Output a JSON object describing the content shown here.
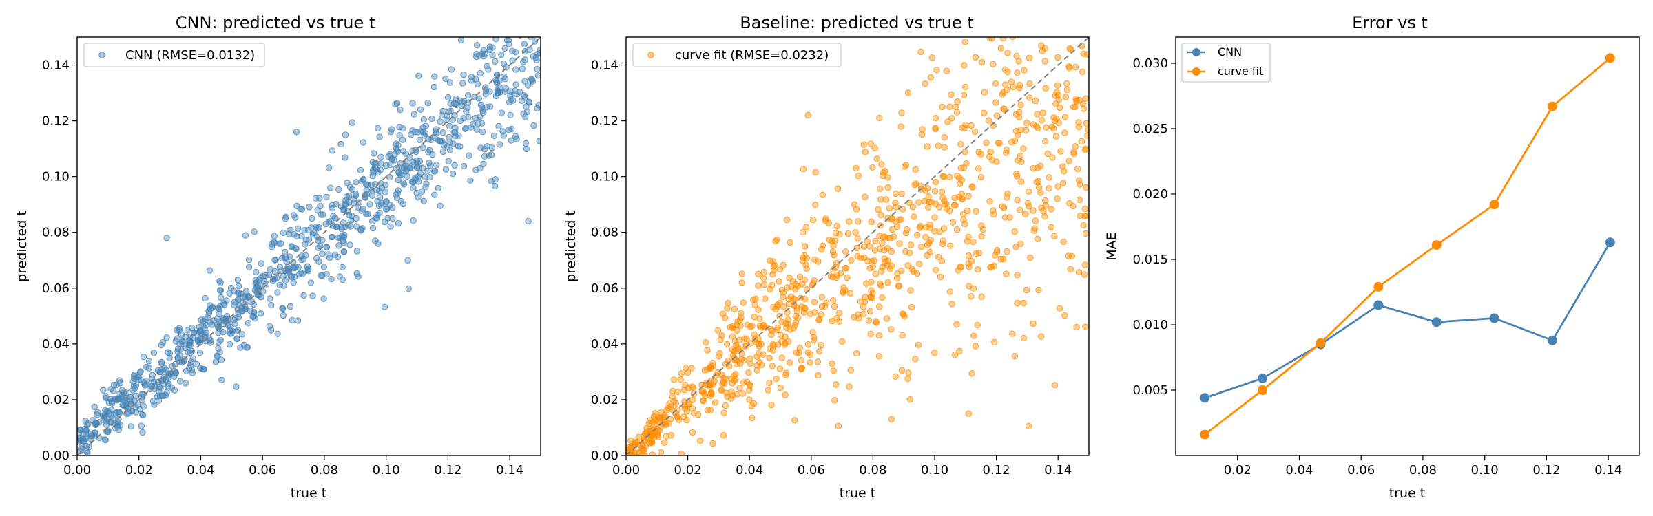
{
  "chart_data": [
    {
      "type": "scatter",
      "title": "CNN: predicted vs true t",
      "xlabel": "true t",
      "ylabel": "predicted t",
      "xlim": [
        0.0,
        0.15
      ],
      "ylim": [
        0.0,
        0.15
      ],
      "xticks": [
        "0.00",
        "0.02",
        "0.04",
        "0.06",
        "0.08",
        "0.10",
        "0.12",
        "0.14"
      ],
      "yticks": [
        "0.00",
        "0.02",
        "0.04",
        "0.06",
        "0.08",
        "0.10",
        "0.12",
        "0.14"
      ],
      "reference_line": "y = x (dashed gray)",
      "grid": false,
      "legend_position": "upper-left",
      "series": [
        {
          "name": "CNN (RMSE=0.0132)",
          "color": "#4682b4",
          "approx_points": 1000,
          "noise_sd": 0.0132,
          "points": [
            [
              0.002,
              0.008
            ],
            [
              0.006,
              0.011
            ],
            [
              0.011,
              0.012
            ],
            [
              0.016,
              0.015
            ],
            [
              0.021,
              0.022
            ],
            [
              0.027,
              0.03
            ],
            [
              0.029,
              0.078
            ],
            [
              0.034,
              0.041
            ],
            [
              0.04,
              0.044
            ],
            [
              0.046,
              0.048
            ],
            [
              0.052,
              0.063
            ],
            [
              0.058,
              0.062
            ],
            [
              0.064,
              0.066
            ],
            [
              0.07,
              0.062
            ],
            [
              0.071,
              0.116
            ],
            [
              0.076,
              0.085
            ],
            [
              0.082,
              0.084
            ],
            [
              0.088,
              0.093
            ],
            [
              0.094,
              0.097
            ],
            [
              0.1,
              0.104
            ],
            [
              0.103,
              0.126
            ],
            [
              0.107,
              0.07
            ],
            [
              0.112,
              0.116
            ],
            [
              0.118,
              0.122
            ],
            [
              0.124,
              0.12
            ],
            [
              0.13,
              0.128
            ],
            [
              0.136,
              0.131
            ],
            [
              0.142,
              0.133
            ],
            [
              0.146,
              0.084
            ],
            [
              0.147,
              0.135
            ]
          ]
        }
      ]
    },
    {
      "type": "scatter",
      "title": "Baseline: predicted vs true t",
      "xlabel": "true t",
      "ylabel": "predicted t",
      "xlim": [
        0.0,
        0.15
      ],
      "ylim": [
        0.0,
        0.15
      ],
      "xticks": [
        "0.00",
        "0.02",
        "0.04",
        "0.06",
        "0.08",
        "0.10",
        "0.12",
        "0.14"
      ],
      "yticks": [
        "0.00",
        "0.02",
        "0.04",
        "0.06",
        "0.08",
        "0.10",
        "0.12",
        "0.14"
      ],
      "reference_line": "y = x (dashed gray)",
      "grid": false,
      "legend_position": "upper-left",
      "series": [
        {
          "name": "curve fit (RMSE=0.0232)",
          "color": "#ff8c00",
          "approx_points": 1000,
          "noise_sd": 0.0232,
          "points": [
            [
              0.002,
              0.002
            ],
            [
              0.008,
              0.007
            ],
            [
              0.013,
              0.011
            ],
            [
              0.019,
              0.018
            ],
            [
              0.025,
              0.023
            ],
            [
              0.031,
              0.029
            ],
            [
              0.037,
              0.033
            ],
            [
              0.043,
              0.04
            ],
            [
              0.049,
              0.045
            ],
            [
              0.055,
              0.05
            ],
            [
              0.059,
              0.122
            ],
            [
              0.061,
              0.055
            ],
            [
              0.067,
              0.064
            ],
            [
              0.073,
              0.07
            ],
            [
              0.079,
              0.075
            ],
            [
              0.085,
              0.078
            ],
            [
              0.086,
              0.013
            ],
            [
              0.091,
              0.081
            ],
            [
              0.097,
              0.095
            ],
            [
              0.103,
              0.1
            ],
            [
              0.109,
              0.092
            ],
            [
              0.111,
              0.015
            ],
            [
              0.115,
              0.108
            ],
            [
              0.121,
              0.112
            ],
            [
              0.127,
              0.115
            ],
            [
              0.133,
              0.118
            ],
            [
              0.139,
              0.12
            ],
            [
              0.145,
              0.125
            ],
            [
              0.146,
              0.046
            ],
            [
              0.149,
              0.128
            ]
          ]
        }
      ]
    },
    {
      "type": "line",
      "title": "Error vs t",
      "xlabel": "true t",
      "ylabel": "MAE",
      "xlim": [
        0.0,
        0.15
      ],
      "ylim": [
        0.0,
        0.032
      ],
      "xticks": [
        "0.02",
        "0.04",
        "0.06",
        "0.08",
        "0.10",
        "0.12",
        "0.14"
      ],
      "yticks": [
        "0.005",
        "0.010",
        "0.015",
        "0.020",
        "0.025",
        "0.030"
      ],
      "grid": false,
      "legend_position": "upper-left",
      "x": [
        0.0094,
        0.0281,
        0.0469,
        0.0656,
        0.0844,
        0.1031,
        0.1219,
        0.1406
      ],
      "series": [
        {
          "name": "CNN",
          "color": "#4682b4",
          "values": [
            0.0044,
            0.0059,
            0.0085,
            0.0115,
            0.0102,
            0.0105,
            0.0088,
            0.0163
          ]
        },
        {
          "name": "curve fit",
          "color": "#ff8c00",
          "values": [
            0.0016,
            0.005,
            0.0086,
            0.0129,
            0.0161,
            0.0192,
            0.0267,
            0.0304
          ]
        }
      ]
    }
  ]
}
